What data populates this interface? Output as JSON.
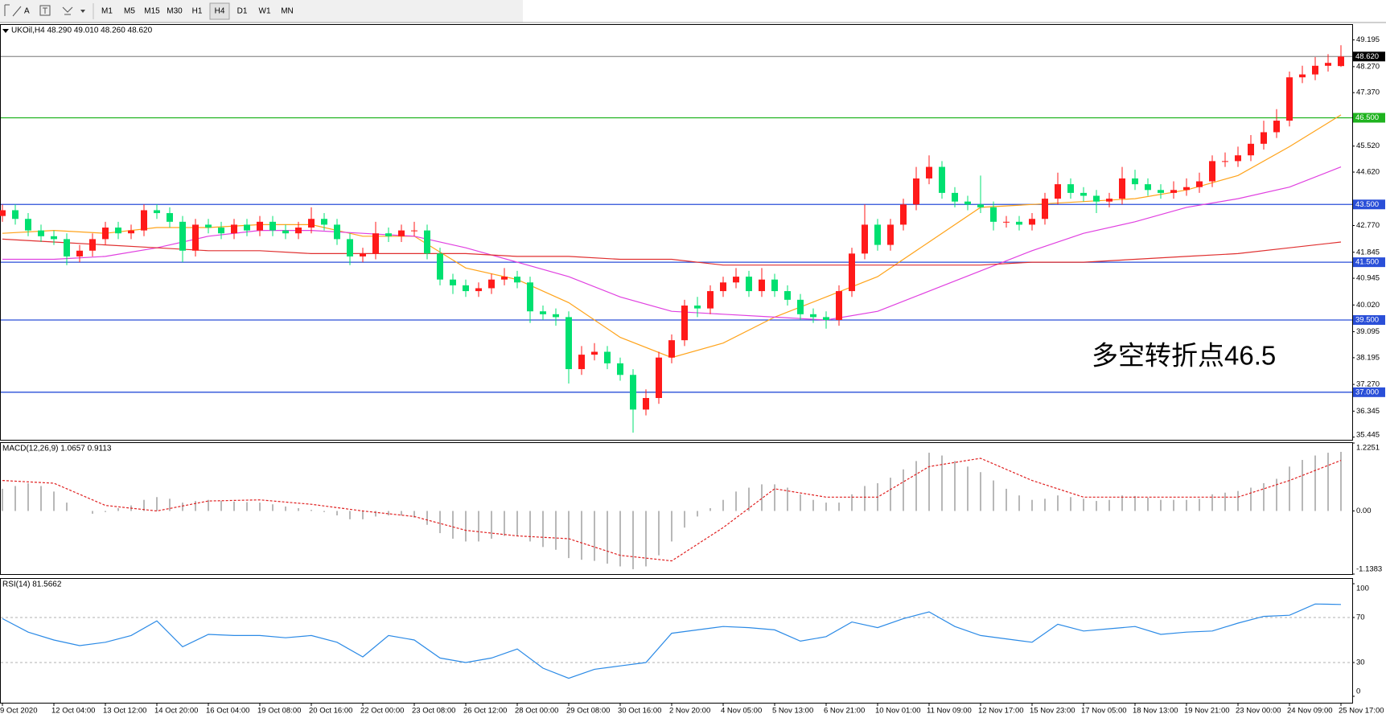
{
  "toolbar": {
    "text_tool": "A",
    "timeframes": [
      "M1",
      "M5",
      "M15",
      "M30",
      "H1",
      "H4",
      "D1",
      "W1",
      "MN"
    ],
    "selected": "H4"
  },
  "chart_data": [
    {
      "type": "candlestick",
      "title": "UKOil,H4  48.290 49.010 48.260 48.620",
      "annotation": {
        "text": "多空转折点46.5",
        "color": "#f02828"
      },
      "categories": [
        "9 Oct 2020",
        null,
        null,
        null,
        "12 Oct 04:00",
        null,
        null,
        null,
        "13 Oct 12:00",
        null,
        null,
        null,
        "14 Oct 20:00",
        null,
        null,
        null,
        "16 Oct 04:00",
        null,
        null,
        null,
        "19 Oct 08:00",
        null,
        null,
        null,
        "20 Oct 16:00",
        null,
        null,
        null,
        "22 Oct 00:00",
        null,
        null,
        null,
        "23 Oct 08:00",
        null,
        null,
        null,
        "26 Oct 12:00",
        null,
        null,
        null,
        "28 Oct 00:00",
        null,
        null,
        null,
        "29 Oct 08:00",
        null,
        null,
        null,
        "30 Oct 16:00",
        null,
        null,
        null,
        "2 Nov 20:00",
        null,
        null,
        null,
        "4 Nov 05:00",
        null,
        null,
        null,
        "5 Nov 13:00",
        null,
        null,
        null,
        "6 Nov 21:00",
        null,
        null,
        null,
        "10 Nov 01:00",
        null,
        null,
        null,
        "11 Nov 09:00",
        null,
        null,
        null,
        "12 Nov 17:00",
        null,
        null,
        null,
        "15 Nov 23:00",
        null,
        null,
        null,
        "17 Nov 05:00",
        null,
        null,
        null,
        "18 Nov 13:00",
        null,
        null,
        null,
        "19 Nov 21:00",
        null,
        null,
        null,
        "23 Nov 00:00",
        null,
        null,
        null,
        "24 Nov 09:00",
        null,
        null,
        null,
        "25 Nov 17:00"
      ],
      "candles": {
        "up_color": "#ff1a1a",
        "down_color": "#00e070",
        "open": [
          43.1,
          43.3,
          43.0,
          42.6,
          42.4,
          42.3,
          41.7,
          41.9,
          42.3,
          42.7,
          42.5,
          42.6,
          43.3,
          43.2,
          42.9,
          41.9,
          42.8,
          42.7,
          42.5,
          42.8,
          42.6,
          42.9,
          42.6,
          42.5,
          42.7,
          43.0,
          42.8,
          42.3,
          41.7,
          41.8,
          42.5,
          42.4,
          42.6,
          42.6,
          41.8,
          40.9,
          40.7,
          40.5,
          40.6,
          40.9,
          41.0,
          40.8,
          39.8,
          39.7,
          39.6,
          37.8,
          38.3,
          38.4,
          38.0,
          37.6,
          36.4,
          36.8,
          38.2,
          38.8,
          40.0,
          39.9,
          40.5,
          40.8,
          41.0,
          40.5,
          40.9,
          40.5,
          40.2,
          39.7,
          39.6,
          39.5,
          40.5,
          41.8,
          42.8,
          42.1,
          42.8,
          43.5,
          44.4,
          44.8,
          43.9,
          43.6,
          43.5,
          43.4,
          42.9,
          42.9,
          42.8,
          43.0,
          43.7,
          44.2,
          43.9,
          43.8,
          43.6,
          43.7,
          44.4,
          44.2,
          44.0,
          43.9,
          44.0,
          44.1,
          44.3,
          45.0,
          45.0,
          45.2,
          45.6,
          46.0,
          46.4,
          47.9,
          48.0,
          48.3,
          48.29
        ],
        "high": [
          43.5,
          43.5,
          43.2,
          42.8,
          42.6,
          42.5,
          42.1,
          42.5,
          42.9,
          42.9,
          42.8,
          43.5,
          43.5,
          43.4,
          43.1,
          43.0,
          43.0,
          42.9,
          43.0,
          43.0,
          43.1,
          43.1,
          42.8,
          42.9,
          43.4,
          43.2,
          43.0,
          42.5,
          42.0,
          42.9,
          42.7,
          42.8,
          42.9,
          42.8,
          42.0,
          41.1,
          40.9,
          40.8,
          41.1,
          41.3,
          41.2,
          41.0,
          40.0,
          39.9,
          39.8,
          38.6,
          38.7,
          38.6,
          38.2,
          37.8,
          37.1,
          38.4,
          39.0,
          40.2,
          40.3,
          40.7,
          41.0,
          41.3,
          41.2,
          41.3,
          41.1,
          40.7,
          40.4,
          39.9,
          39.8,
          40.7,
          42.0,
          43.5,
          43.0,
          43.0,
          43.7,
          44.8,
          45.2,
          45.0,
          44.1,
          43.8,
          44.5,
          43.6,
          43.1,
          43.1,
          43.2,
          43.9,
          44.6,
          44.4,
          44.1,
          44.0,
          43.9,
          44.8,
          44.7,
          44.4,
          44.2,
          44.3,
          44.4,
          44.6,
          45.2,
          45.3,
          45.5,
          45.9,
          46.4,
          46.8,
          48.1,
          48.3,
          48.6,
          48.7,
          49.01
        ],
        "low": [
          42.9,
          42.8,
          42.4,
          42.2,
          42.1,
          41.4,
          41.5,
          41.7,
          42.1,
          42.3,
          42.3,
          42.4,
          43.0,
          42.7,
          41.5,
          41.7,
          42.5,
          42.3,
          42.3,
          42.4,
          42.4,
          42.4,
          42.3,
          42.3,
          42.5,
          42.6,
          42.1,
          41.4,
          41.5,
          41.6,
          42.2,
          42.2,
          42.4,
          41.6,
          40.7,
          40.4,
          40.3,
          40.3,
          40.4,
          40.7,
          40.6,
          39.4,
          39.5,
          39.3,
          37.3,
          37.6,
          38.1,
          37.8,
          37.4,
          35.6,
          36.2,
          36.6,
          38.0,
          38.6,
          39.6,
          39.7,
          40.3,
          40.6,
          40.3,
          40.3,
          40.3,
          40.0,
          39.5,
          39.4,
          39.2,
          39.3,
          40.3,
          41.6,
          41.9,
          41.9,
          42.6,
          43.3,
          44.2,
          43.7,
          43.4,
          43.3,
          43.2,
          42.6,
          42.7,
          42.6,
          42.6,
          42.8,
          43.5,
          43.7,
          43.6,
          43.2,
          43.4,
          43.5,
          44.0,
          43.8,
          43.7,
          43.7,
          43.8,
          43.9,
          44.1,
          44.8,
          44.8,
          45.0,
          45.4,
          45.8,
          46.2,
          47.7,
          47.8,
          48.1,
          48.26
        ],
        "close": [
          43.3,
          43.0,
          42.6,
          42.4,
          42.3,
          41.7,
          41.9,
          42.3,
          42.7,
          42.5,
          42.6,
          43.3,
          43.2,
          42.9,
          41.9,
          42.8,
          42.7,
          42.5,
          42.8,
          42.6,
          42.9,
          42.6,
          42.5,
          42.7,
          43.0,
          42.8,
          42.3,
          41.7,
          41.8,
          42.5,
          42.4,
          42.6,
          42.6,
          41.8,
          40.9,
          40.7,
          40.5,
          40.6,
          40.9,
          41.0,
          40.8,
          39.8,
          39.7,
          39.6,
          37.8,
          38.3,
          38.4,
          38.0,
          37.6,
          36.4,
          36.8,
          38.2,
          38.8,
          40.0,
          39.9,
          40.5,
          40.8,
          41.0,
          40.5,
          40.9,
          40.5,
          40.2,
          39.7,
          39.6,
          39.5,
          40.5,
          41.8,
          42.8,
          42.1,
          42.8,
          43.5,
          44.4,
          44.8,
          43.9,
          43.6,
          43.5,
          43.4,
          42.9,
          42.9,
          42.8,
          43.0,
          43.7,
          44.2,
          43.9,
          43.8,
          43.6,
          43.7,
          44.4,
          44.2,
          44.0,
          43.9,
          44.0,
          44.1,
          44.3,
          45.0,
          45.0,
          45.2,
          45.6,
          46.0,
          46.4,
          47.9,
          48.0,
          48.3,
          48.4,
          48.62
        ]
      },
      "series": [
        {
          "color": "#ffa31a",
          "x": [
            0,
            4,
            8,
            12,
            16,
            20,
            24,
            28,
            32,
            36,
            40,
            44,
            48,
            52,
            56,
            60,
            64,
            68,
            72,
            76,
            80,
            84,
            88,
            92,
            96,
            100,
            104
          ],
          "values": [
            42.5,
            42.6,
            42.5,
            42.7,
            42.7,
            42.8,
            42.8,
            42.4,
            42.4,
            41.3,
            40.9,
            40.1,
            38.9,
            38.2,
            38.7,
            39.6,
            40.3,
            41.0,
            42.2,
            43.4,
            43.5,
            43.6,
            43.7,
            44.0,
            44.5,
            45.5,
            46.6
          ]
        },
        {
          "color": "#e040e0",
          "x": [
            0,
            4,
            8,
            12,
            16,
            20,
            24,
            28,
            32,
            36,
            40,
            44,
            48,
            52,
            56,
            60,
            64,
            68,
            72,
            76,
            80,
            84,
            88,
            92,
            96,
            100,
            104
          ],
          "values": [
            41.6,
            41.6,
            41.7,
            42.0,
            42.4,
            42.6,
            42.6,
            42.5,
            42.4,
            42.0,
            41.5,
            41.0,
            40.3,
            39.8,
            39.7,
            39.6,
            39.5,
            39.8,
            40.5,
            41.2,
            41.9,
            42.5,
            42.9,
            43.4,
            43.7,
            44.1,
            44.8
          ]
        },
        {
          "color": "#e03030",
          "x": [
            0,
            4,
            8,
            12,
            16,
            20,
            24,
            28,
            32,
            36,
            40,
            44,
            48,
            52,
            56,
            60,
            64,
            68,
            72,
            76,
            80,
            84,
            88,
            92,
            96,
            100,
            104
          ],
          "values": [
            42.3,
            42.2,
            42.1,
            42.0,
            41.9,
            41.9,
            41.8,
            41.8,
            41.8,
            41.8,
            41.7,
            41.7,
            41.6,
            41.6,
            41.4,
            41.4,
            41.4,
            41.4,
            41.4,
            41.4,
            41.5,
            41.5,
            41.6,
            41.7,
            41.8,
            42.0,
            42.2
          ]
        }
      ],
      "levels": [
        {
          "value": 46.5,
          "label": "46.500",
          "color": "#1fb31f"
        },
        {
          "value": 43.5,
          "label": "43.500",
          "color": "#2a4fd8"
        },
        {
          "value": 41.5,
          "label": "41.500",
          "color": "#2a4fd8"
        },
        {
          "value": 39.5,
          "label": "39.500",
          "color": "#2a4fd8"
        },
        {
          "value": 37,
          "label": "37.000",
          "color": "#2a4fd8"
        }
      ],
      "last_price": {
        "value": 48.62,
        "label": "48.620",
        "color": "#9a9a9a"
      },
      "ylim": [
        35.353,
        49.714
      ],
      "yticks": [
        49.195,
        {
          "value": 48.27,
          "label": "48.270"
        },
        {
          "value": 47.37,
          "label": "47.370"
        },
        {
          "value": 45.52,
          "label": "45.520"
        },
        {
          "value": 44.62,
          "label": "44.620"
        },
        {
          "value": 42.77,
          "label": "42.770"
        },
        41.845,
        40.945,
        {
          "value": 40.02,
          "label": "40.020"
        },
        39.095,
        38.195,
        {
          "value": 37.27,
          "label": "37.270"
        },
        36.345,
        35.445
      ]
    },
    {
      "type": "bar",
      "title": "MACD(12,26,9) 1.0657 0.9113",
      "color": "#b8b8b8",
      "values": [
        0.4,
        0.45,
        0.5,
        0.45,
        0.35,
        0.15,
        0.0,
        -0.05,
        -0.02,
        0.05,
        0.1,
        0.2,
        0.25,
        0.22,
        0.15,
        0.18,
        0.2,
        0.18,
        0.17,
        0.16,
        0.15,
        0.12,
        0.08,
        0.05,
        0.02,
        -0.02,
        -0.08,
        -0.15,
        -0.15,
        -0.1,
        -0.08,
        -0.08,
        -0.12,
        -0.25,
        -0.4,
        -0.5,
        -0.55,
        -0.55,
        -0.5,
        -0.45,
        -0.45,
        -0.55,
        -0.65,
        -0.7,
        -0.85,
        -0.88,
        -0.9,
        -0.95,
        -1.0,
        -1.05,
        -1.0,
        -0.8,
        -0.55,
        -0.3,
        -0.1,
        0.05,
        0.2,
        0.35,
        0.42,
        0.48,
        0.48,
        0.42,
        0.3,
        0.2,
        0.15,
        0.15,
        0.3,
        0.45,
        0.5,
        0.6,
        0.75,
        0.9,
        1.05,
        1.0,
        0.9,
        0.8,
        0.7,
        0.55,
        0.4,
        0.28,
        0.2,
        0.22,
        0.28,
        0.25,
        0.22,
        0.18,
        0.2,
        0.28,
        0.27,
        0.24,
        0.2,
        0.2,
        0.2,
        0.22,
        0.3,
        0.33,
        0.36,
        0.42,
        0.5,
        0.58,
        0.8,
        0.92,
        1.0,
        1.05,
        1.0657
      ],
      "signal": {
        "color": "#e02020",
        "x": [
          0,
          4,
          8,
          12,
          16,
          20,
          24,
          28,
          32,
          36,
          40,
          44,
          48,
          52,
          56,
          60,
          64,
          68,
          72,
          76,
          80,
          84,
          88,
          92,
          96,
          100,
          104
        ],
        "values": [
          0.55,
          0.5,
          0.1,
          0.0,
          0.18,
          0.2,
          0.12,
          0.0,
          -0.1,
          -0.35,
          -0.45,
          -0.5,
          -0.8,
          -0.9,
          -0.3,
          0.4,
          0.25,
          0.25,
          0.8,
          0.95,
          0.55,
          0.25,
          0.25,
          0.25,
          0.25,
          0.55,
          0.9113
        ]
      },
      "ylim": [
        -1.1383,
        1.2251
      ],
      "yticks": [
        1.2251,
        {
          "value": 0,
          "label": "0.00"
        },
        -1.1383
      ]
    },
    {
      "type": "line",
      "title": "RSI(14) 81.5662",
      "color": "#2b8ae6",
      "x": [
        0,
        2,
        4,
        6,
        8,
        10,
        12,
        14,
        16,
        18,
        20,
        22,
        24,
        26,
        28,
        30,
        32,
        34,
        36,
        38,
        40,
        42,
        44,
        46,
        48,
        50,
        52,
        54,
        56,
        58,
        60,
        62,
        64,
        66,
        68,
        70,
        72,
        74,
        76,
        78,
        80,
        82,
        84,
        86,
        88,
        90,
        92,
        94,
        96,
        98,
        100,
        102,
        104
      ],
      "values": [
        69,
        57,
        50,
        45,
        48,
        54,
        67,
        44,
        55,
        54,
        54,
        52,
        54,
        48,
        35,
        54,
        50,
        34,
        30,
        34,
        42,
        25,
        16,
        24,
        27,
        30,
        56,
        59,
        62,
        61,
        59,
        49,
        53,
        66,
        61,
        69,
        75,
        62,
        54,
        51,
        48,
        64,
        58,
        60,
        62,
        55,
        57,
        58,
        65,
        71,
        72,
        82,
        81.5662
      ],
      "levels": [
        70,
        30
      ],
      "ylim": [
        0,
        100
      ],
      "yticks": [
        100,
        70,
        30,
        0
      ]
    }
  ]
}
